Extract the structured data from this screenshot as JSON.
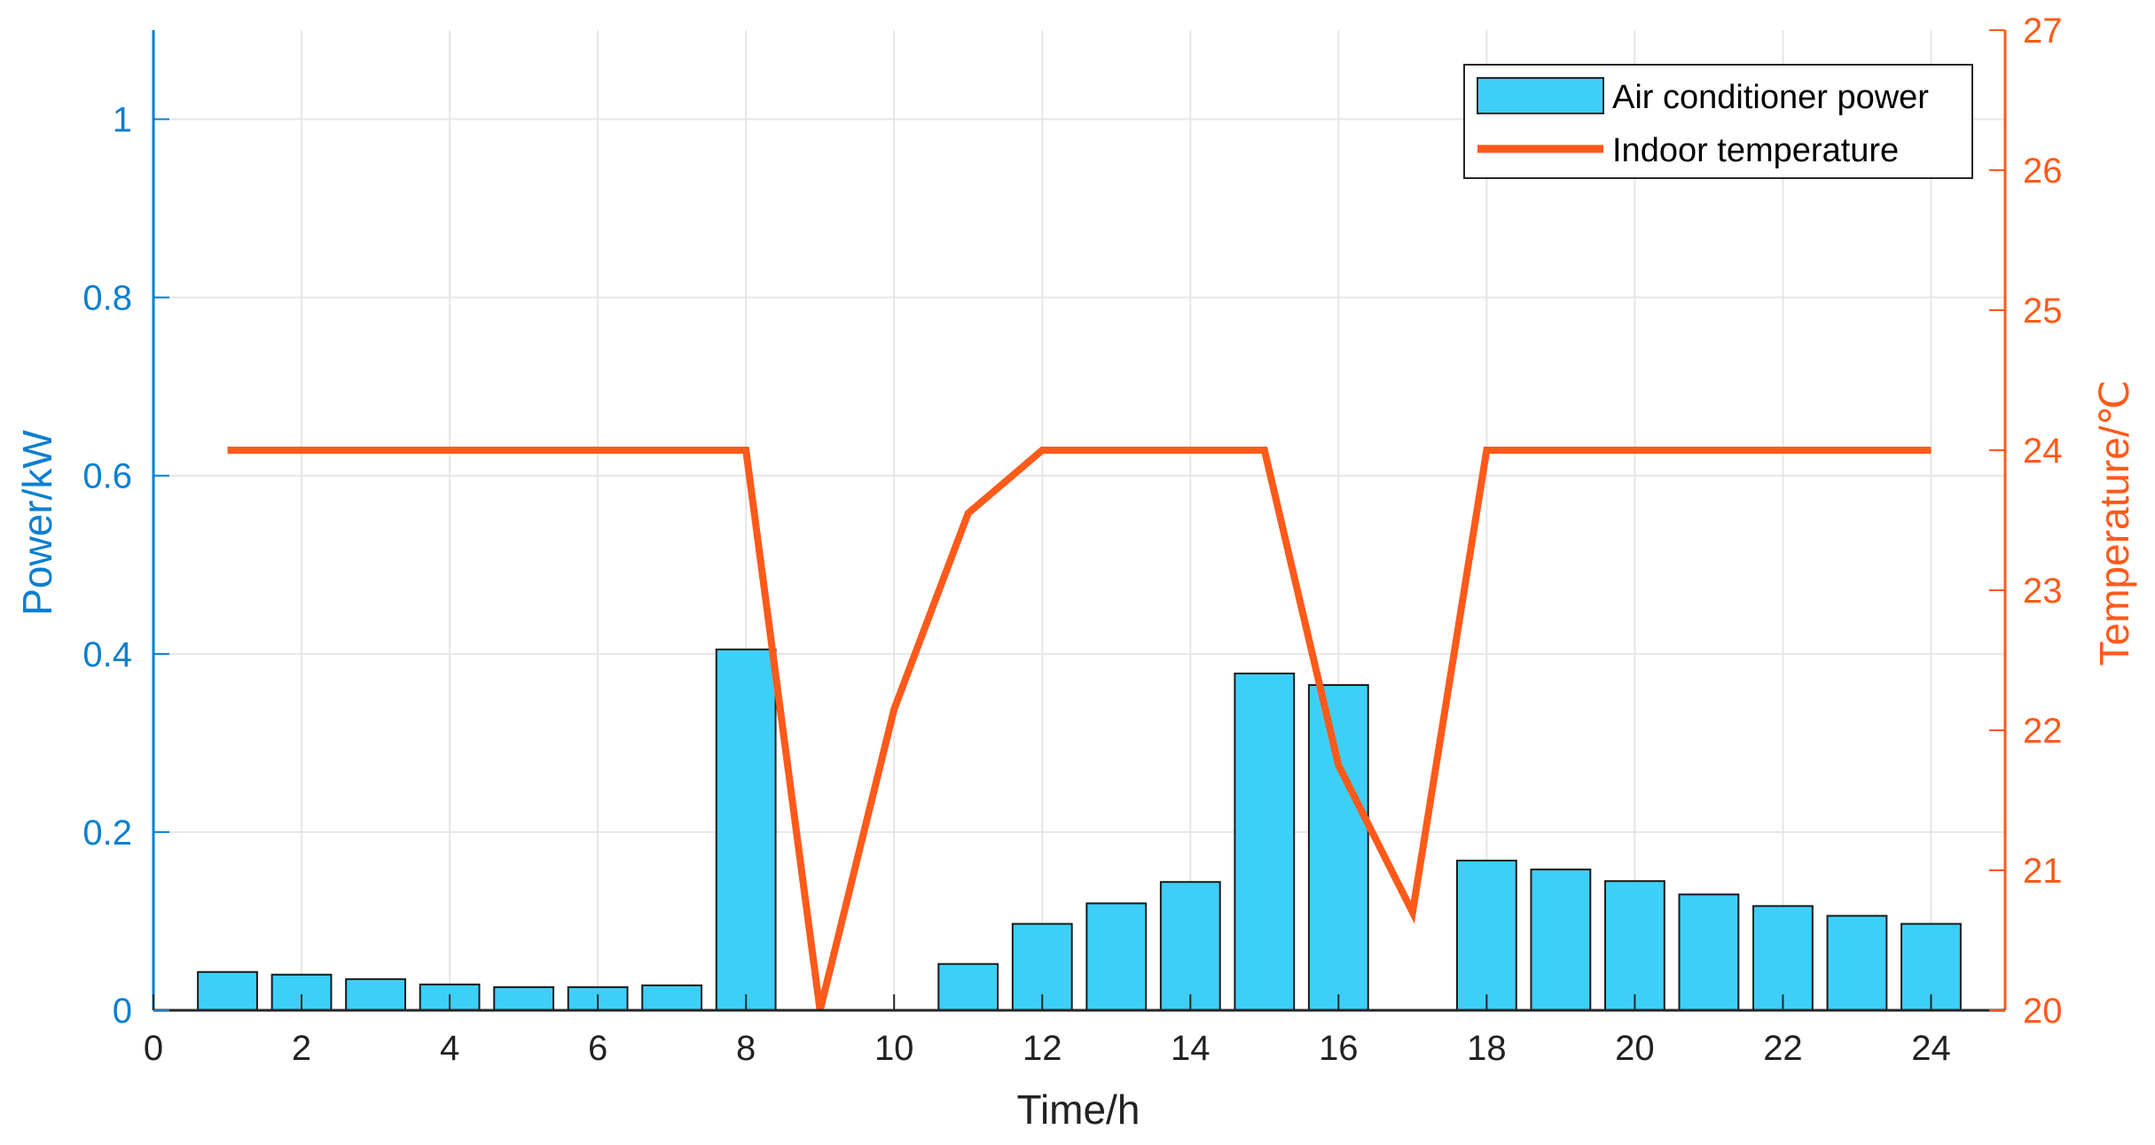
{
  "chart_data": {
    "type": "bar",
    "x": [
      1,
      2,
      3,
      4,
      5,
      6,
      7,
      8,
      9,
      10,
      11,
      12,
      13,
      14,
      15,
      16,
      17,
      18,
      19,
      20,
      21,
      22,
      23,
      24
    ],
    "xlabel": "Time/h",
    "xlim": [
      0,
      25
    ],
    "xticks": [
      0,
      2,
      4,
      6,
      8,
      10,
      12,
      14,
      16,
      18,
      20,
      22,
      24
    ],
    "grid": true,
    "legend_position": "top-right",
    "series": [
      {
        "name": "Air conditioner power",
        "type": "bar",
        "axis": "left",
        "color": "#3dcff8",
        "values": [
          0.043,
          0.04,
          0.035,
          0.029,
          0.026,
          0.026,
          0.028,
          0.405,
          0.0,
          0.0,
          0.052,
          0.097,
          0.12,
          0.144,
          0.378,
          0.365,
          0.0,
          0.168,
          0.158,
          0.145,
          0.13,
          0.117,
          0.106,
          0.097
        ]
      },
      {
        "name": "Indoor temperature",
        "type": "line",
        "axis": "right",
        "color": "#ff5a1a",
        "values": [
          24,
          24,
          24,
          24,
          24,
          24,
          24,
          24,
          20.0,
          22.15,
          23.55,
          24,
          24,
          24,
          24,
          21.75,
          20.7,
          24,
          24,
          24,
          24,
          24,
          24,
          24
        ]
      }
    ],
    "y_left": {
      "label": "Power/kW",
      "range": [
        0,
        1.1
      ],
      "ticks": [
        "0",
        "0.2",
        "0.4",
        "0.6",
        "0.8",
        "1"
      ],
      "color": "#0b7fd0"
    },
    "y_right": {
      "label": "Temperature/℃",
      "range": [
        20,
        27
      ],
      "ticks": [
        "20",
        "21",
        "22",
        "23",
        "24",
        "25",
        "26",
        "27"
      ],
      "color": "#ff5a1a"
    }
  }
}
